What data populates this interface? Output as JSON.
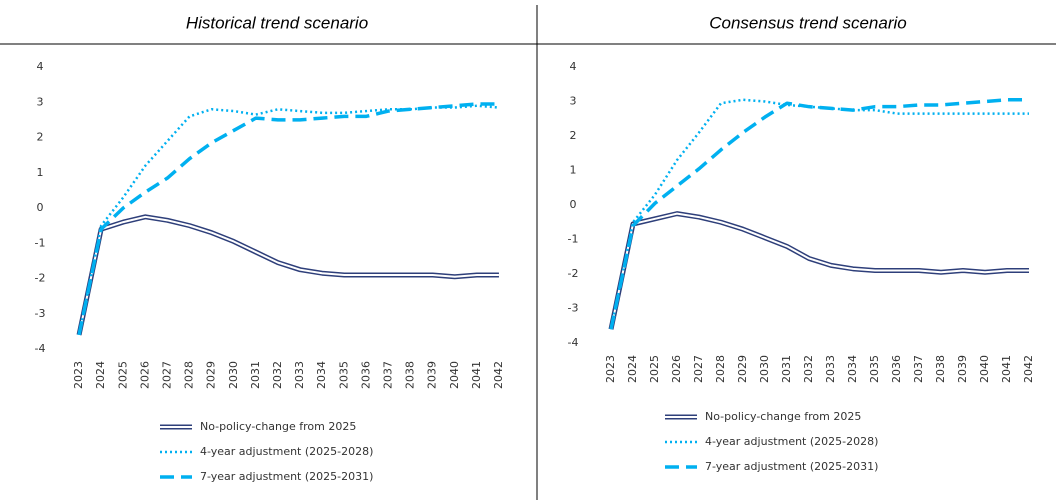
{
  "chart_data": [
    {
      "type": "line",
      "title": "Historical trend scenario",
      "categories": [
        "2023",
        "2024",
        "2025",
        "2026",
        "2027",
        "2028",
        "2029",
        "2030",
        "2031",
        "2032",
        "2033",
        "2034",
        "2035",
        "2036",
        "2037",
        "2038",
        "2039",
        "2040",
        "2041",
        "2042"
      ],
      "ylim": [
        -4,
        4
      ],
      "yticks": [
        -4,
        -3,
        -2,
        -1,
        0,
        1,
        2,
        3,
        4
      ],
      "grid": false,
      "series": [
        {
          "name": "No-policy-change from 2025",
          "color": "#2e3f7a",
          "style": "double",
          "values": [
            -3.6,
            -0.6,
            -0.4,
            -0.25,
            -0.35,
            -0.5,
            -0.7,
            -0.95,
            -1.25,
            -1.55,
            -1.75,
            -1.85,
            -1.9,
            -1.9,
            -1.9,
            -1.9,
            -1.9,
            -1.95,
            -1.9,
            -1.9
          ]
        },
        {
          "name": "4-year adjustment (2025-2028)",
          "color": "#00b0f0",
          "style": "dotted",
          "values": [
            -3.6,
            -0.5,
            0.3,
            1.2,
            1.9,
            2.6,
            2.8,
            2.75,
            2.65,
            2.8,
            2.75,
            2.7,
            2.7,
            2.75,
            2.8,
            2.8,
            2.85,
            2.85,
            2.9,
            2.85
          ]
        },
        {
          "name": "7-year adjustment (2025-2031)",
          "color": "#00b0f0",
          "style": "dashed",
          "values": [
            -3.6,
            -0.6,
            0.0,
            0.45,
            0.85,
            1.4,
            1.85,
            2.2,
            2.55,
            2.5,
            2.5,
            2.55,
            2.6,
            2.6,
            2.75,
            2.8,
            2.85,
            2.9,
            2.95,
            2.95
          ]
        }
      ]
    },
    {
      "type": "line",
      "title": "Consensus trend scenario",
      "categories": [
        "2023",
        "2024",
        "2025",
        "2026",
        "2027",
        "2028",
        "2029",
        "2030",
        "2031",
        "2032",
        "2033",
        "2034",
        "2035",
        "2036",
        "2037",
        "2038",
        "2039",
        "2040",
        "2041",
        "2042"
      ],
      "ylim": [
        -4,
        4
      ],
      "yticks": [
        -4,
        -3,
        -2,
        -1,
        0,
        1,
        2,
        3,
        4
      ],
      "grid": false,
      "series": [
        {
          "name": "No-policy-change from 2025",
          "color": "#2e3f7a",
          "style": "double",
          "values": [
            -3.6,
            -0.55,
            -0.4,
            -0.25,
            -0.35,
            -0.5,
            -0.7,
            -0.95,
            -1.2,
            -1.55,
            -1.75,
            -1.85,
            -1.9,
            -1.9,
            -1.9,
            -1.95,
            -1.9,
            -1.95,
            -1.9,
            -1.9
          ]
        },
        {
          "name": "4-year adjustment (2025-2028)",
          "color": "#00b0f0",
          "style": "dotted",
          "values": [
            -3.6,
            -0.5,
            0.3,
            1.3,
            2.1,
            2.95,
            3.05,
            3.0,
            2.9,
            2.85,
            2.8,
            2.75,
            2.75,
            2.65,
            2.65,
            2.65,
            2.65,
            2.65,
            2.65,
            2.65
          ]
        },
        {
          "name": "7-year adjustment (2025-2031)",
          "color": "#00b0f0",
          "style": "dashed",
          "values": [
            -3.6,
            -0.6,
            0.05,
            0.55,
            1.05,
            1.6,
            2.1,
            2.55,
            2.95,
            2.85,
            2.8,
            2.75,
            2.85,
            2.85,
            2.9,
            2.9,
            2.95,
            3.0,
            3.05,
            3.05
          ]
        }
      ]
    }
  ]
}
